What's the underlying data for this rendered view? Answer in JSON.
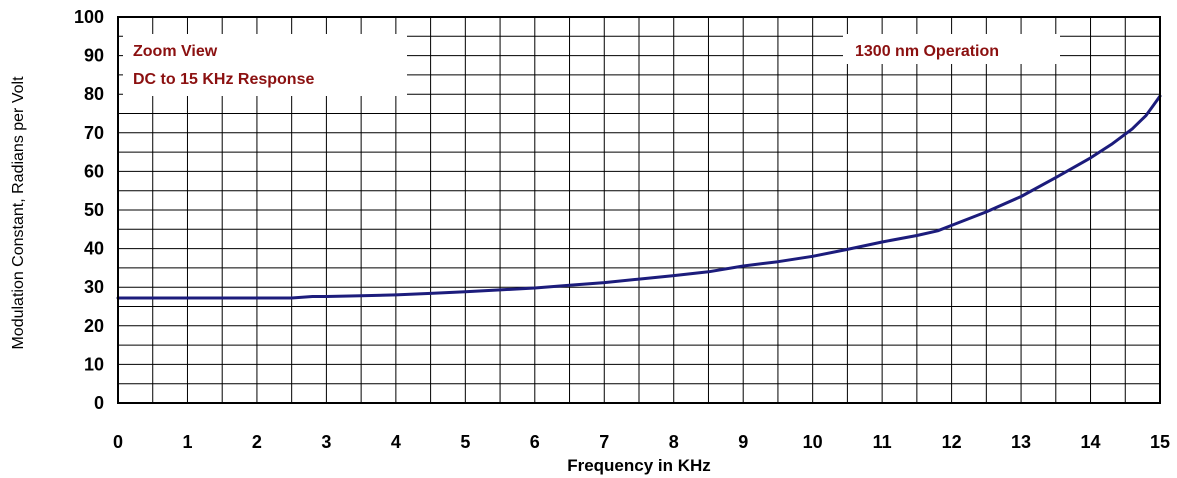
{
  "chart_data": {
    "type": "line",
    "xlabel": "Frequency in KHz",
    "ylabel": "Modulation Constant, Radians  per Volt",
    "xlim": [
      0,
      15
    ],
    "ylim": [
      0,
      100
    ],
    "x_ticks": [
      "0",
      "1",
      "2",
      "3",
      "4",
      "5",
      "6",
      "7",
      "8",
      "9",
      "10",
      "11",
      "12",
      "13",
      "14",
      "15"
    ],
    "y_ticks": [
      "0",
      "10",
      "20",
      "30",
      "40",
      "50",
      "60",
      "70",
      "80",
      "90",
      "100"
    ],
    "x_minor_step": 0.5,
    "y_minor_step": 5,
    "grid": true,
    "annotations": {
      "left_line1": "Zoom View",
      "left_line2": "DC to 15 KHz Response",
      "right": "1300 nm Operation",
      "color": "#8b1010"
    },
    "line_color": "#1c1c7c",
    "series": [
      {
        "x": [
          0,
          0.5,
          1,
          1.5,
          2,
          2.5,
          2.8,
          3,
          3.5,
          4,
          4.5,
          5,
          5.5,
          6,
          6.5,
          7,
          7.5,
          8,
          8.5,
          9,
          9.5,
          10,
          10.5,
          11,
          11.5,
          11.8,
          12,
          12.5,
          13,
          13.5,
          14,
          14.3,
          14.6,
          14.8,
          14.9,
          15
        ],
        "y": [
          27.2,
          27.2,
          27.2,
          27.2,
          27.2,
          27.2,
          27.6,
          27.6,
          27.8,
          28,
          28.4,
          28.8,
          29.3,
          29.8,
          30.5,
          31.2,
          32.1,
          33,
          34,
          35.5,
          36.6,
          38,
          39.8,
          41.7,
          43.4,
          44.6,
          46,
          49.5,
          53.5,
          58.4,
          63.5,
          67,
          71,
          74.5,
          77,
          79.5
        ]
      }
    ]
  }
}
